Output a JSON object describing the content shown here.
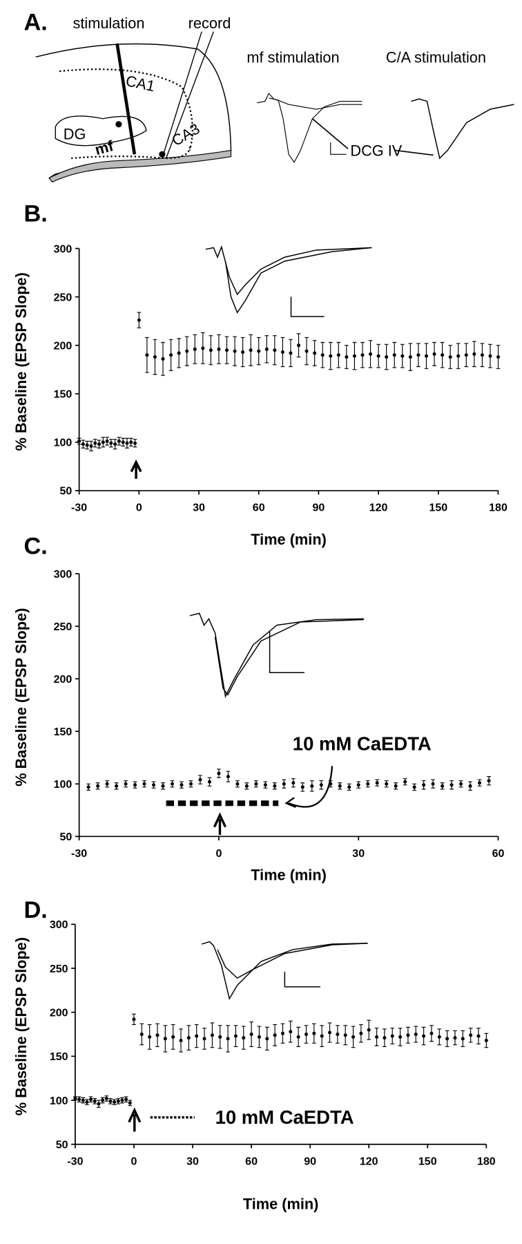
{
  "panel_a": {
    "label": "A.",
    "stimulation": "stimulation",
    "record": "record",
    "mf_stimulation": "mf stimulation",
    "ca_stimulation": "C/A stimulation",
    "ca1": "CA1",
    "dg": "DG",
    "mf": "mf",
    "ca3": "CA3",
    "dcg": "DCG IV"
  },
  "chart_data": [
    {
      "type": "scatter",
      "panel_label": "B.",
      "xlabel": "Time (min)",
      "ylabel": "% Baseline (EPSP Slope)",
      "xlim": [
        -30,
        180
      ],
      "xticks": [
        -30,
        0,
        30,
        60,
        90,
        120,
        150,
        180
      ],
      "ylim": [
        50,
        300
      ],
      "yticks": [
        50,
        100,
        150,
        200,
        250,
        300
      ],
      "series": [
        {
          "color": "#000000",
          "x": [
            -30,
            -28,
            -26,
            -24,
            -22,
            -20,
            -18,
            -16,
            -14,
            -12,
            -10,
            -8,
            -6,
            -4,
            -2,
            0,
            4,
            8,
            12,
            16,
            20,
            24,
            28,
            32,
            36,
            40,
            44,
            48,
            52,
            56,
            60,
            64,
            68,
            72,
            76,
            80,
            84,
            88,
            92,
            96,
            100,
            104,
            108,
            112,
            116,
            120,
            124,
            128,
            132,
            136,
            140,
            144,
            148,
            152,
            156,
            160,
            164,
            168,
            172,
            176,
            180
          ],
          "values": [
            101,
            98,
            97,
            96,
            99,
            98,
            100,
            101,
            99,
            98,
            101,
            100,
            99,
            100,
            99,
            226,
            190,
            188,
            186,
            190,
            192,
            194,
            196,
            197,
            195,
            196,
            195,
            194,
            193,
            195,
            194,
            196,
            195,
            193,
            192,
            200,
            194,
            192,
            190,
            189,
            190,
            188,
            189,
            190,
            191,
            189,
            188,
            190,
            189,
            188,
            190,
            189,
            191,
            190,
            188,
            189,
            190,
            191,
            190,
            189,
            188
          ],
          "errors": [
            3,
            4,
            4,
            5,
            4,
            4,
            5,
            4,
            4,
            5,
            4,
            4,
            5,
            4,
            4,
            8,
            18,
            18,
            17,
            16,
            15,
            15,
            15,
            16,
            15,
            15,
            14,
            15,
            15,
            16,
            14,
            14,
            15,
            15,
            14,
            12,
            14,
            13,
            13,
            14,
            13,
            12,
            14,
            13,
            14,
            12,
            13,
            13,
            12,
            14,
            12,
            13,
            12,
            13,
            12,
            13,
            12,
            13,
            12,
            12,
            12
          ]
        }
      ]
    },
    {
      "type": "scatter",
      "panel_label": "C.",
      "xlabel": "Time (min)",
      "ylabel": "% Baseline (EPSP Slope)",
      "annotation": "10 mM CaEDTA",
      "xlim": [
        -30,
        60
      ],
      "xticks": [
        -30,
        0,
        30,
        60
      ],
      "ylim": [
        50,
        300
      ],
      "yticks": [
        50,
        100,
        150,
        200,
        250,
        300
      ],
      "series": [
        {
          "color": "#000000",
          "x": [
            -28,
            -26,
            -24,
            -22,
            -20,
            -18,
            -16,
            -14,
            -12,
            -10,
            -8,
            -6,
            -4,
            -2,
            0,
            2,
            4,
            6,
            8,
            10,
            12,
            14,
            16,
            18,
            20,
            22,
            24,
            26,
            28,
            30,
            32,
            34,
            36,
            38,
            40,
            42,
            44,
            46,
            48,
            50,
            52,
            54,
            56,
            58
          ],
          "values": [
            97,
            98,
            100,
            98,
            100,
            99,
            100,
            99,
            98,
            100,
            99,
            100,
            104,
            102,
            110,
            107,
            100,
            98,
            100,
            99,
            98,
            100,
            101,
            97,
            98,
            99,
            100,
            98,
            97,
            99,
            100,
            101,
            100,
            98,
            102,
            97,
            99,
            100,
            98,
            99,
            100,
            98,
            101,
            103
          ],
          "errors": [
            3,
            3,
            3,
            3,
            3,
            3,
            3,
            3,
            3,
            3,
            3,
            3,
            4,
            4,
            4,
            5,
            3,
            3,
            3,
            3,
            3,
            4,
            4,
            4,
            5,
            4,
            3,
            3,
            3,
            3,
            3,
            3,
            3,
            3,
            3,
            3,
            4,
            4,
            3,
            4,
            3,
            4,
            3,
            4
          ]
        }
      ]
    },
    {
      "type": "scatter",
      "panel_label": "D.",
      "xlabel": "Time (min)",
      "ylabel": "% Baseline (EPSP Slope)",
      "annotation": "10 mM CaEDTA",
      "xlim": [
        -30,
        180
      ],
      "xticks": [
        -30,
        0,
        30,
        60,
        90,
        120,
        150,
        180
      ],
      "ylim": [
        50,
        300
      ],
      "yticks": [
        50,
        100,
        150,
        200,
        250,
        300
      ],
      "series": [
        {
          "color": "#000000",
          "x": [
            -30,
            -28,
            -26,
            -24,
            -22,
            -20,
            -18,
            -16,
            -14,
            -12,
            -10,
            -8,
            -6,
            -4,
            -2,
            0,
            4,
            8,
            12,
            16,
            20,
            24,
            28,
            32,
            36,
            40,
            44,
            48,
            52,
            56,
            60,
            64,
            68,
            72,
            76,
            80,
            84,
            88,
            92,
            96,
            100,
            104,
            108,
            112,
            116,
            120,
            124,
            128,
            132,
            136,
            140,
            144,
            148,
            152,
            156,
            160,
            164,
            168,
            172,
            176,
            180
          ],
          "values": [
            102,
            101,
            100,
            98,
            101,
            99,
            96,
            100,
            102,
            99,
            98,
            99,
            100,
            101,
            97,
            192,
            175,
            172,
            174,
            170,
            172,
            168,
            171,
            173,
            170,
            174,
            172,
            170,
            173,
            171,
            175,
            172,
            170,
            174,
            176,
            178,
            172,
            175,
            176,
            173,
            177,
            175,
            174,
            172,
            176,
            180,
            172,
            171,
            173,
            172,
            174,
            175,
            173,
            176,
            172,
            170,
            171,
            170,
            174,
            173,
            168
          ],
          "errors": [
            2,
            3,
            3,
            3,
            3,
            3,
            4,
            3,
            3,
            3,
            3,
            3,
            3,
            3,
            3,
            6,
            12,
            14,
            13,
            15,
            14,
            13,
            14,
            13,
            12,
            14,
            13,
            15,
            12,
            13,
            14,
            12,
            13,
            12,
            11,
            12,
            11,
            10,
            11,
            12,
            11,
            10,
            11,
            12,
            10,
            11,
            10,
            10,
            9,
            10,
            9,
            9,
            10,
            9,
            9,
            9,
            8,
            9,
            8,
            9,
            8
          ]
        }
      ]
    }
  ]
}
